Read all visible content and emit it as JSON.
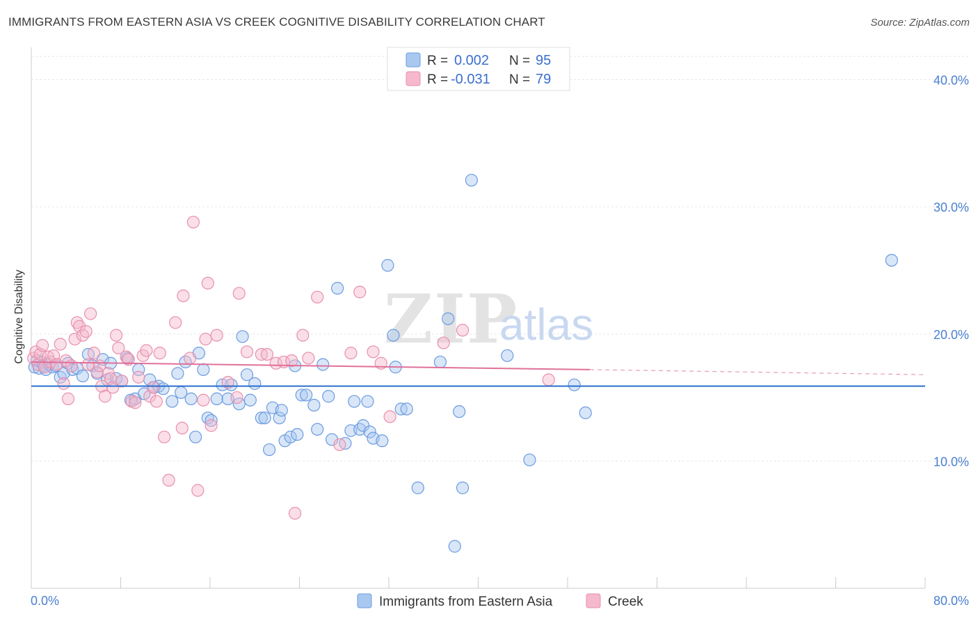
{
  "header": {
    "title": "IMMIGRANTS FROM EASTERN ASIA VS CREEK COGNITIVE DISABILITY CORRELATION CHART",
    "source": "Source: ZipAtlas.com"
  },
  "watermark": {
    "part1": "ZIP",
    "part2": "atlas"
  },
  "legend": {
    "rows": [
      {
        "r_label": "R =",
        "r_value": "0.002",
        "n_label": "N =",
        "n_value": "95",
        "color": "#a9c8f0",
        "stroke": "#6b9be0"
      },
      {
        "r_label": "R =",
        "r_value": "-0.031",
        "n_label": "N =",
        "n_value": "79",
        "color": "#f5b8cc",
        "stroke": "#e890ac"
      }
    ]
  },
  "chart_data": {
    "type": "scatter",
    "title": "IMMIGRANTS FROM EASTERN ASIA VS CREEK COGNITIVE DISABILITY CORRELATION CHART",
    "xlabel": "",
    "ylabel": "Cognitive Disability",
    "xlim": [
      0,
      80
    ],
    "ylim": [
      0,
      42
    ],
    "x_tick_labels": [
      "0.0%",
      "80.0%"
    ],
    "y_ticks": [
      10,
      20,
      30,
      40
    ],
    "y_tick_labels": [
      "10.0%",
      "20.0%",
      "30.0%",
      "40.0%"
    ],
    "grid": true,
    "legend_position": "top-center",
    "series": [
      {
        "name": "Immigrants from Eastern Asia",
        "color": "#6b9be0",
        "fill": "#a9c8f0",
        "trend": {
          "x": [
            0,
            80
          ],
          "y": [
            15.9,
            15.9
          ],
          "color": "#2a6fcc"
        },
        "points": [
          [
            0.3,
            17.4
          ],
          [
            0.5,
            17.9
          ],
          [
            0.7,
            17.3
          ],
          [
            0.9,
            17.8
          ],
          [
            1.1,
            17.5
          ],
          [
            1.3,
            17.2
          ],
          [
            1.6,
            17.6
          ],
          [
            1.9,
            17.4
          ],
          [
            2.2,
            17.5
          ],
          [
            2.6,
            16.6
          ],
          [
            2.9,
            16.9
          ],
          [
            3.3,
            17.7
          ],
          [
            3.7,
            17.2
          ],
          [
            4.1,
            17.3
          ],
          [
            4.6,
            16.7
          ],
          [
            5.1,
            18.4
          ],
          [
            5.5,
            17.5
          ],
          [
            5.9,
            16.9
          ],
          [
            6.4,
            18.0
          ],
          [
            6.8,
            16.4
          ],
          [
            7.1,
            17.7
          ],
          [
            7.6,
            16.5
          ],
          [
            8.1,
            16.3
          ],
          [
            8.6,
            18.1
          ],
          [
            8.9,
            14.8
          ],
          [
            9.3,
            14.9
          ],
          [
            9.6,
            17.2
          ],
          [
            10.1,
            15.3
          ],
          [
            10.6,
            16.4
          ],
          [
            11.0,
            15.8
          ],
          [
            11.4,
            15.9
          ],
          [
            11.8,
            15.7
          ],
          [
            12.6,
            14.7
          ],
          [
            13.1,
            16.9
          ],
          [
            13.4,
            15.4
          ],
          [
            13.8,
            17.8
          ],
          [
            14.3,
            14.9
          ],
          [
            14.7,
            11.9
          ],
          [
            15.0,
            18.5
          ],
          [
            15.4,
            17.2
          ],
          [
            15.8,
            13.4
          ],
          [
            16.1,
            13.2
          ],
          [
            16.6,
            14.9
          ],
          [
            17.1,
            16.0
          ],
          [
            17.6,
            14.9
          ],
          [
            17.9,
            16.0
          ],
          [
            18.6,
            14.5
          ],
          [
            18.9,
            19.8
          ],
          [
            19.3,
            16.8
          ],
          [
            19.6,
            14.8
          ],
          [
            20.0,
            16.1
          ],
          [
            20.6,
            13.4
          ],
          [
            20.9,
            13.4
          ],
          [
            21.3,
            10.9
          ],
          [
            21.6,
            14.2
          ],
          [
            22.2,
            13.4
          ],
          [
            22.4,
            14.0
          ],
          [
            22.7,
            11.6
          ],
          [
            23.2,
            11.9
          ],
          [
            23.6,
            17.5
          ],
          [
            23.8,
            12.1
          ],
          [
            24.2,
            15.2
          ],
          [
            24.6,
            15.2
          ],
          [
            25.3,
            14.4
          ],
          [
            25.6,
            12.5
          ],
          [
            26.1,
            17.6
          ],
          [
            26.6,
            15.1
          ],
          [
            26.9,
            11.7
          ],
          [
            27.4,
            23.6
          ],
          [
            28.1,
            11.4
          ],
          [
            28.6,
            12.4
          ],
          [
            28.9,
            14.7
          ],
          [
            29.4,
            12.5
          ],
          [
            29.7,
            12.8
          ],
          [
            30.1,
            14.7
          ],
          [
            30.3,
            12.3
          ],
          [
            30.6,
            11.8
          ],
          [
            31.4,
            11.6
          ],
          [
            31.9,
            25.4
          ],
          [
            32.4,
            19.9
          ],
          [
            32.6,
            17.4
          ],
          [
            33.1,
            14.1
          ],
          [
            33.6,
            14.1
          ],
          [
            34.6,
            7.9
          ],
          [
            36.6,
            17.8
          ],
          [
            37.3,
            21.2
          ],
          [
            37.9,
            3.3
          ],
          [
            38.3,
            13.9
          ],
          [
            38.6,
            7.9
          ],
          [
            39.4,
            32.1
          ],
          [
            42.6,
            18.3
          ],
          [
            44.6,
            10.1
          ],
          [
            48.6,
            16.0
          ],
          [
            49.6,
            13.8
          ],
          [
            77.0,
            25.8
          ]
        ]
      },
      {
        "name": "Creek",
        "color": "#e890ac",
        "fill": "#f5b8cc",
        "trend": {
          "x": [
            0,
            50
          ],
          "y": [
            17.8,
            17.2
          ],
          "dashed_to": [
            80,
            16.8
          ],
          "color": "#e0709a"
        },
        "points": [
          [
            0.2,
            18.1
          ],
          [
            0.4,
            18.6
          ],
          [
            0.6,
            17.6
          ],
          [
            0.8,
            18.4
          ],
          [
            1.0,
            19.1
          ],
          [
            1.2,
            17.4
          ],
          [
            1.5,
            18.2
          ],
          [
            1.7,
            17.8
          ],
          [
            2.0,
            18.3
          ],
          [
            2.3,
            17.6
          ],
          [
            2.6,
            19.2
          ],
          [
            2.9,
            16.1
          ],
          [
            3.1,
            17.9
          ],
          [
            3.3,
            14.9
          ],
          [
            3.6,
            17.5
          ],
          [
            3.9,
            19.6
          ],
          [
            4.1,
            20.9
          ],
          [
            4.3,
            20.6
          ],
          [
            4.6,
            19.9
          ],
          [
            4.9,
            20.2
          ],
          [
            5.1,
            17.6
          ],
          [
            5.3,
            21.6
          ],
          [
            5.6,
            18.5
          ],
          [
            5.9,
            17.0
          ],
          [
            6.1,
            17.5
          ],
          [
            6.3,
            15.9
          ],
          [
            6.6,
            15.1
          ],
          [
            6.9,
            16.9
          ],
          [
            7.1,
            16.5
          ],
          [
            7.3,
            15.8
          ],
          [
            7.6,
            19.9
          ],
          [
            7.8,
            18.9
          ],
          [
            8.1,
            16.3
          ],
          [
            8.5,
            18.2
          ],
          [
            8.7,
            18.0
          ],
          [
            9.0,
            14.7
          ],
          [
            9.3,
            14.6
          ],
          [
            9.6,
            16.6
          ],
          [
            10.0,
            18.3
          ],
          [
            10.3,
            18.7
          ],
          [
            10.6,
            15.1
          ],
          [
            10.9,
            15.8
          ],
          [
            11.2,
            14.7
          ],
          [
            11.5,
            18.5
          ],
          [
            11.9,
            11.9
          ],
          [
            12.3,
            8.5
          ],
          [
            12.9,
            20.9
          ],
          [
            13.5,
            12.6
          ],
          [
            13.6,
            23.0
          ],
          [
            14.2,
            18.1
          ],
          [
            14.5,
            28.8
          ],
          [
            14.9,
            7.7
          ],
          [
            15.4,
            14.8
          ],
          [
            15.6,
            19.6
          ],
          [
            15.8,
            24.0
          ],
          [
            16.1,
            12.8
          ],
          [
            16.6,
            19.9
          ],
          [
            17.6,
            16.2
          ],
          [
            18.4,
            15.0
          ],
          [
            18.6,
            23.2
          ],
          [
            19.3,
            18.6
          ],
          [
            20.6,
            18.4
          ],
          [
            21.1,
            18.4
          ],
          [
            21.9,
            17.7
          ],
          [
            22.6,
            17.8
          ],
          [
            23.3,
            17.9
          ],
          [
            23.6,
            5.9
          ],
          [
            24.3,
            19.9
          ],
          [
            24.8,
            18.1
          ],
          [
            25.6,
            22.9
          ],
          [
            27.6,
            11.3
          ],
          [
            28.6,
            18.5
          ],
          [
            29.4,
            23.3
          ],
          [
            30.6,
            18.6
          ],
          [
            31.3,
            17.7
          ],
          [
            32.1,
            13.5
          ],
          [
            36.9,
            19.3
          ],
          [
            38.6,
            20.3
          ],
          [
            46.3,
            16.4
          ]
        ]
      }
    ]
  },
  "bottom_legend": [
    {
      "label": "Immigrants from Eastern Asia",
      "color": "#a9c8f0",
      "stroke": "#6b9be0"
    },
    {
      "label": "Creek",
      "color": "#f5b8cc",
      "stroke": "#e890ac"
    }
  ]
}
